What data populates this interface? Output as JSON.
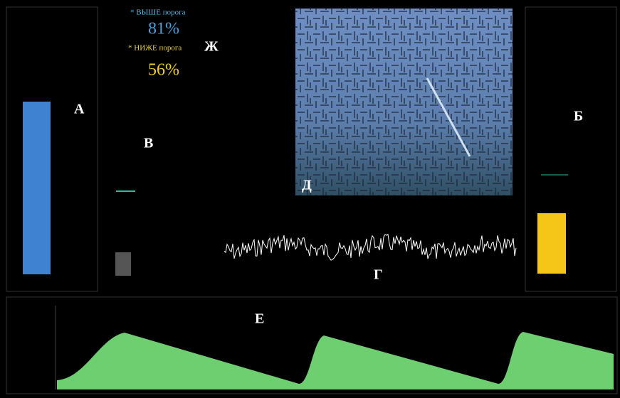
{
  "indicators": {
    "above": {
      "label": "* ВЫШЕ порога",
      "value": "81%"
    },
    "below": {
      "label": "* НИЖЕ порога",
      "value": "56%"
    }
  },
  "panel_labels": {
    "a": "А",
    "b": "Б",
    "v": "В",
    "g": "Г",
    "d": "Д",
    "e": "Е",
    "zh": "Ж"
  }
}
